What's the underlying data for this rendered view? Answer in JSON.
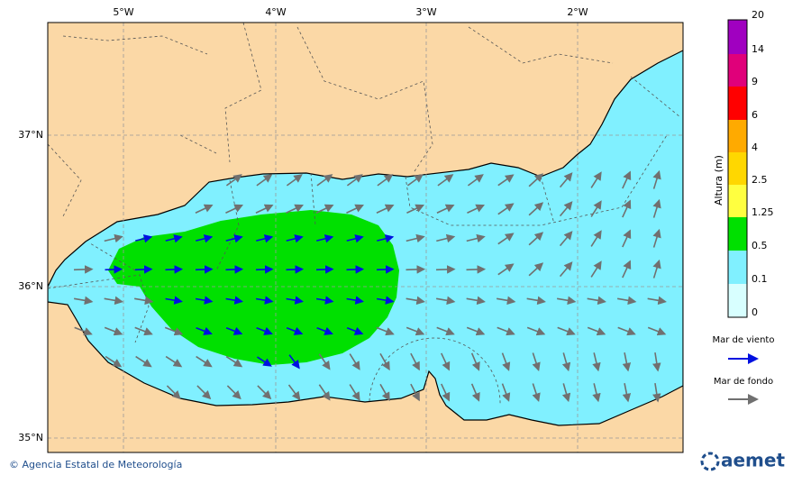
{
  "map": {
    "longitude_labels": [
      "5°W",
      "4°W",
      "3°W",
      "2°W"
    ],
    "latitude_labels": [
      "37°N",
      "36°N",
      "35°N"
    ],
    "colorbar": {
      "title": "Altura (m)",
      "labels": [
        20,
        14,
        9,
        6,
        4,
        2.5,
        1.25,
        0.5,
        0.1,
        0
      ]
    },
    "legend": [
      {
        "label": "Mar de viento"
      },
      {
        "label": "Mar de fondo"
      }
    ],
    "footer": {
      "credit": "© Agencia Estatal de Meteorología",
      "logo": "aemet"
    }
  }
}
